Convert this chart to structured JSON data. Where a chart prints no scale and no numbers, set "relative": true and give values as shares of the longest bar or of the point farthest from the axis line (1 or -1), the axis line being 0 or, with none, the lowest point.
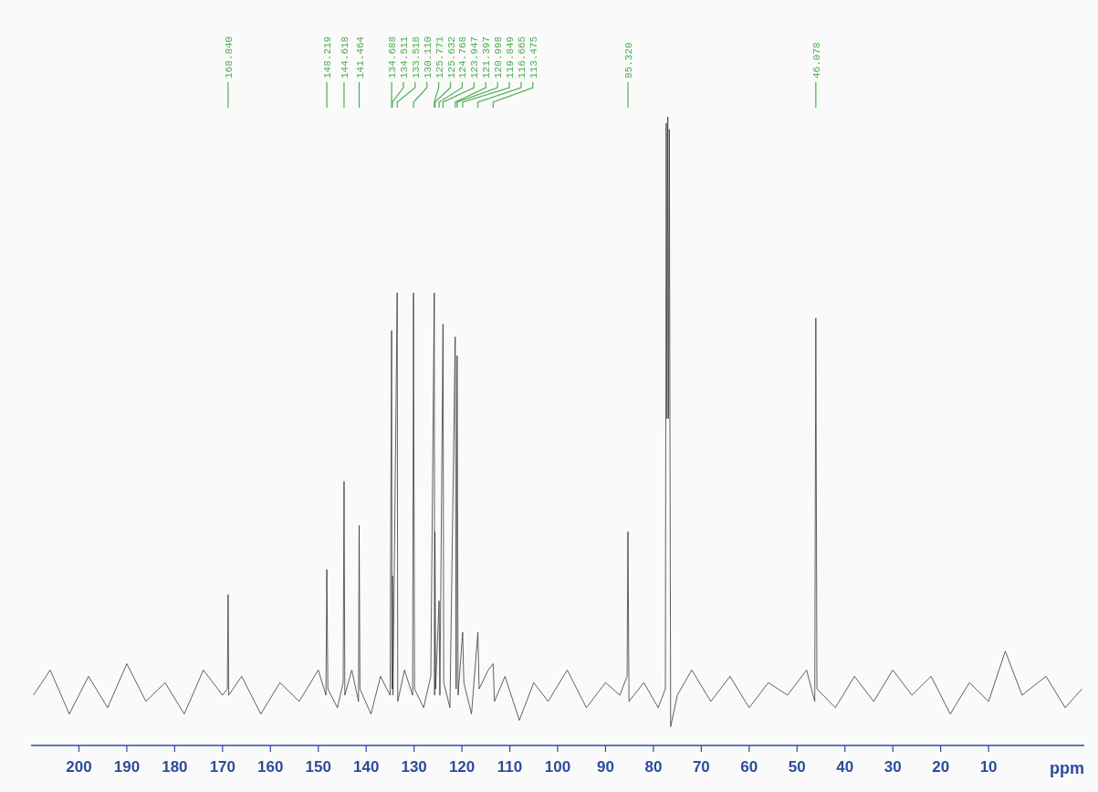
{
  "chart_data": {
    "type": "line",
    "relative": true,
    "xlabel": "ppm",
    "xlim": [
      210,
      -10
    ],
    "xticks": [
      200,
      190,
      180,
      170,
      160,
      150,
      140,
      130,
      120,
      110,
      100,
      90,
      80,
      70,
      60,
      50,
      40,
      30,
      20,
      10
    ],
    "grid": false,
    "tick_labels": "x",
    "marker": "none",
    "line_style": "solid",
    "series": [
      {
        "color": "#3a3a3a",
        "x": [
          209.5,
          206,
          202,
          198,
          194,
          190,
          186,
          182,
          178,
          174,
          170,
          169.0,
          168.84,
          168.7,
          166,
          162,
          158,
          154,
          150,
          148.4,
          148.219,
          148.0,
          146,
          144.8,
          144.618,
          144.45,
          143,
          141.6,
          141.464,
          141.3,
          139,
          137,
          135,
          134.688,
          134.6,
          134.511,
          134.4,
          133.518,
          133.4,
          132,
          130.3,
          130.11,
          129.9,
          128,
          126.5,
          125.771,
          125.7,
          125.632,
          125.5,
          124.768,
          124.6,
          123.947,
          123.8,
          122.5,
          121.397,
          121.2,
          120.998,
          120.8,
          119.849,
          119.6,
          118,
          116.665,
          116.4,
          114.5,
          113.475,
          113.2,
          111,
          108,
          105,
          102,
          98,
          94,
          90,
          87,
          85.5,
          85.32,
          85.1,
          82,
          79,
          77.5,
          77.32,
          77.16,
          77.0,
          76.84,
          76.68,
          76.4,
          75,
          72,
          68,
          64,
          60,
          56,
          52,
          48,
          46.3,
          46.078,
          45.85,
          42,
          38,
          34,
          30,
          26,
          22,
          18,
          14,
          10,
          6.5,
          3,
          -2,
          -6,
          -9.5
        ],
        "values": [
          0.08,
          0.12,
          0.05,
          0.11,
          0.06,
          0.13,
          0.07,
          0.1,
          0.05,
          0.12,
          0.08,
          0.09,
          0.24,
          0.08,
          0.11,
          0.05,
          0.1,
          0.07,
          0.12,
          0.08,
          0.28,
          0.09,
          0.06,
          0.1,
          0.42,
          0.08,
          0.12,
          0.07,
          0.35,
          0.09,
          0.05,
          0.11,
          0.08,
          0.66,
          0.09,
          0.27,
          0.08,
          0.72,
          0.07,
          0.12,
          0.08,
          0.72,
          0.09,
          0.06,
          0.11,
          0.72,
          0.08,
          0.34,
          0.09,
          0.23,
          0.08,
          0.67,
          0.1,
          0.06,
          0.65,
          0.09,
          0.62,
          0.08,
          0.18,
          0.1,
          0.05,
          0.18,
          0.09,
          0.12,
          0.13,
          0.07,
          0.11,
          0.04,
          0.1,
          0.07,
          0.12,
          0.06,
          0.1,
          0.08,
          0.11,
          0.34,
          0.07,
          0.1,
          0.06,
          0.09,
          0.99,
          0.52,
          1,
          0.52,
          0.98,
          0.03,
          0.08,
          0.12,
          0.07,
          0.11,
          0.06,
          0.1,
          0.08,
          0.12,
          0.07,
          0.68,
          0.09,
          0.06,
          0.11,
          0.07,
          0.12,
          0.08,
          0.11,
          0.05,
          0.1,
          0.07,
          0.15,
          0.08,
          0.11,
          0.06,
          0.09
        ]
      }
    ],
    "annotations": [
      {
        "text": "168.840",
        "x": 168.84
      },
      {
        "text": "148.219",
        "x": 148.219
      },
      {
        "text": "144.618",
        "x": 144.618
      },
      {
        "text": "141.464",
        "x": 141.464
      },
      {
        "text": "134.688",
        "x": 134.688
      },
      {
        "text": "134.511",
        "x": 134.511
      },
      {
        "text": "133.518",
        "x": 133.518
      },
      {
        "text": "130.110",
        "x": 130.11
      },
      {
        "text": "125.771",
        "x": 125.771
      },
      {
        "text": "125.632",
        "x": 125.632
      },
      {
        "text": "124.768",
        "x": 124.768
      },
      {
        "text": "123.947",
        "x": 123.947
      },
      {
        "text": "121.397",
        "x": 121.397
      },
      {
        "text": "120.998",
        "x": 120.998
      },
      {
        "text": "119.849",
        "x": 119.849
      },
      {
        "text": "116.665",
        "x": 116.665
      },
      {
        "text": "113.475",
        "x": 113.475
      },
      {
        "text": "85.320",
        "x": 85.32
      },
      {
        "text": "46.078",
        "x": 46.078
      }
    ]
  }
}
